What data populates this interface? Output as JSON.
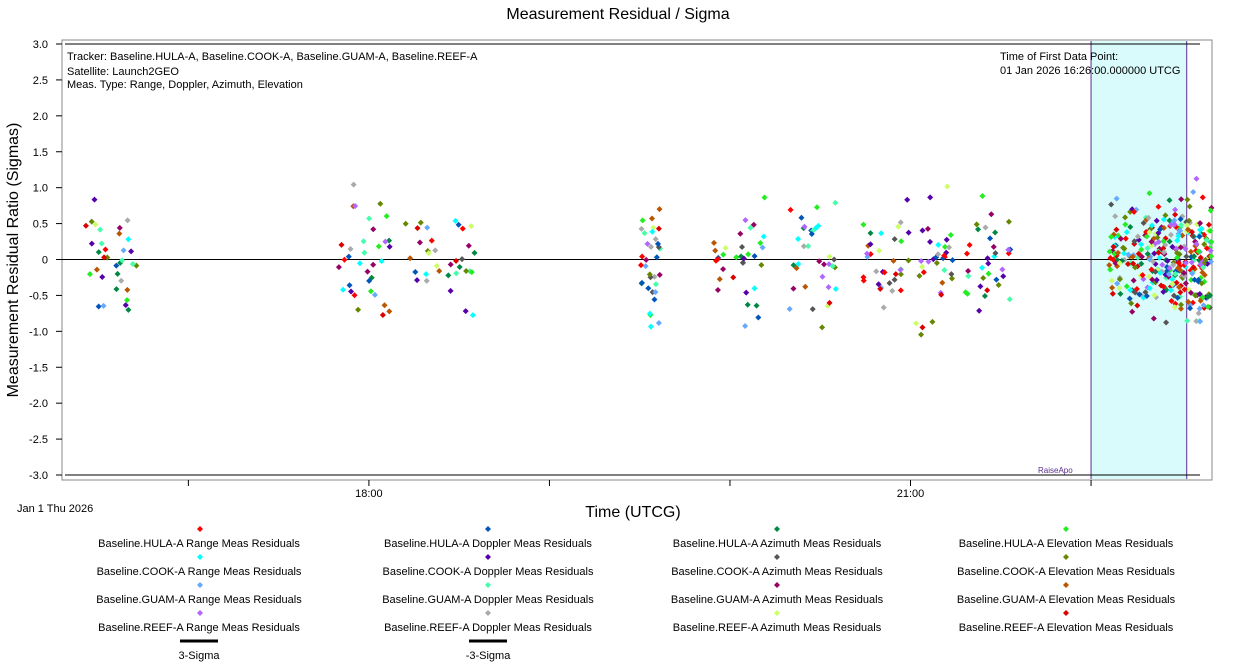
{
  "chart_data": {
    "type": "scatter",
    "title": "Measurement Residual / Sigma",
    "xlabel": "Time (UTCG)",
    "ylabel": "Measurement Residual Ratio (Sigmas)",
    "ylim": [
      -3.0,
      3.0
    ],
    "yticks": [
      "3.0",
      "2.5",
      "2.0",
      "1.5",
      "1.0",
      "0.5",
      "0",
      "-0.5",
      "-1.0",
      "-1.5",
      "-2.0",
      "-2.5",
      "-3.0"
    ],
    "xlim_hours": [
      16.3,
      22.67
    ],
    "x_tick_labels": [
      {
        "hour": 18,
        "label": "18:00"
      },
      {
        "hour": 21,
        "label": "21:00"
      }
    ],
    "x_minor_ticks_hours": [
      17,
      18,
      19,
      20,
      21,
      22
    ],
    "start_date_label": "Jan 1 Thu 2026",
    "info_left": [
      "Tracker: Baseline.HULA-A, Baseline.COOK-A, Baseline.GUAM-A, Baseline.REEF-A",
      "Satellite: Launch2GEO",
      "Meas. Type: Range, Doppler, Azimuth, Elevation"
    ],
    "info_right": [
      "Time of First Data Point:",
      "01 Jan 2026 16:26:00.000000 UTCG"
    ],
    "sigma_lines": [
      {
        "name": "3-Sigma",
        "value": 3.0
      },
      {
        "name": "-3-Sigma",
        "value": -3.0
      }
    ],
    "maneuver": {
      "label": "RaiseApo",
      "start_hour": 22.0,
      "end_hour": 22.53
    },
    "passes": [
      {
        "start": 16.43,
        "end": 16.72
      },
      {
        "start": 17.83,
        "end": 18.12
      },
      {
        "start": 18.2,
        "end": 18.6
      },
      {
        "start": 19.5,
        "end": 19.62
      },
      {
        "start": 19.9,
        "end": 20.2
      },
      {
        "start": 20.33,
        "end": 20.6
      },
      {
        "start": 20.73,
        "end": 20.99
      },
      {
        "start": 21.03,
        "end": 21.24
      },
      {
        "start": 21.3,
        "end": 21.56
      },
      {
        "start": 22.1,
        "end": 22.45
      },
      {
        "start": 22.45,
        "end": 22.67
      }
    ],
    "series": [
      {
        "name": "Baseline.HULA-A Range Meas Residuals",
        "color": "#ff0000"
      },
      {
        "name": "Baseline.COOK-A Range Meas Residuals",
        "color": "#00ffff"
      },
      {
        "name": "Baseline.GUAM-A Range Meas Residuals",
        "color": "#66aaff"
      },
      {
        "name": "Baseline.REEF-A Range Meas Residuals",
        "color": "#b266ff"
      },
      {
        "name": "Baseline.HULA-A Doppler Meas Residuals",
        "color": "#0055bb"
      },
      {
        "name": "Baseline.COOK-A Doppler Meas Residuals",
        "color": "#5500aa"
      },
      {
        "name": "Baseline.GUAM-A Doppler Meas Residuals",
        "color": "#44ffaa"
      },
      {
        "name": "Baseline.REEF-A Doppler Meas Residuals",
        "color": "#aaaaaa"
      },
      {
        "name": "Baseline.HULA-A Azimuth Meas Residuals",
        "color": "#008844"
      },
      {
        "name": "Baseline.COOK-A Azimuth Meas Residuals",
        "color": "#555555"
      },
      {
        "name": "Baseline.GUAM-A Azimuth Meas Residuals",
        "color": "#990066"
      },
      {
        "name": "Baseline.REEF-A Azimuth Meas Residuals",
        "color": "#ccff66"
      },
      {
        "name": "Baseline.HULA-A Elevation Meas Residuals",
        "color": "#22ee22"
      },
      {
        "name": "Baseline.COOK-A Elevation Meas Residuals",
        "color": "#668800"
      },
      {
        "name": "Baseline.GUAM-A Elevation Meas Residuals",
        "color": "#bb5500"
      },
      {
        "name": "Baseline.REEF-A Elevation Meas Residuals",
        "color": "#dd0000"
      }
    ],
    "sigma_legend": [
      {
        "name": "3-Sigma",
        "color": "#000000"
      },
      {
        "name": "-3-Sigma",
        "color": "#000000"
      }
    ]
  }
}
